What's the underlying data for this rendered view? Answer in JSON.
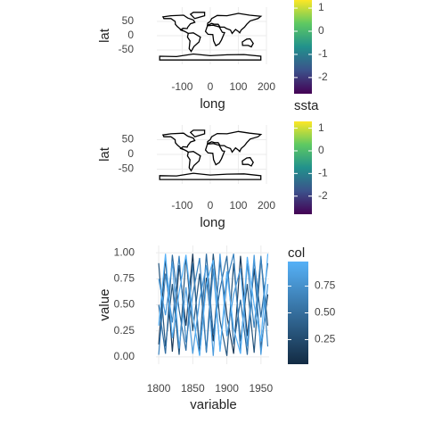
{
  "chart_data": [
    {
      "type": "map",
      "xlabel": "long",
      "ylabel": "lat",
      "xlim": [
        -190,
        200
      ],
      "ylim": [
        -100,
        100
      ],
      "xticks": [
        -100,
        0,
        100,
        200
      ],
      "yticks": [
        50,
        0,
        -50
      ],
      "colorbar": {
        "colormap": "viridis",
        "lim": [
          -2.7,
          1.35
        ],
        "ticks": [
          1,
          0,
          -1,
          -2
        ]
      }
    },
    {
      "type": "map",
      "xlabel": "long",
      "ylabel": "lat",
      "xlim": [
        -190,
        200
      ],
      "ylim": [
        -100,
        100
      ],
      "xticks": [
        -100,
        0,
        100,
        200
      ],
      "yticks": [
        50,
        0,
        -50
      ],
      "colorbar": {
        "title": "ssta",
        "colormap": "viridis",
        "lim": [
          -2.8,
          1.3
        ],
        "ticks": [
          1,
          0,
          -1,
          -2
        ]
      }
    },
    {
      "type": "line",
      "xlabel": "variable",
      "ylabel": "value",
      "xlim": [
        1796,
        1962
      ],
      "ylim": [
        -0.07,
        1.07
      ],
      "xticks": [
        1800,
        1850,
        1900,
        1950
      ],
      "yticks": [
        {
          "value": 0,
          "label": "0.00"
        },
        {
          "value": 0.25,
          "label": "0.25"
        },
        {
          "value": 0.5,
          "label": "0.50"
        },
        {
          "value": 0.75,
          "label": "0.75"
        },
        {
          "value": 1,
          "label": "1.00"
        }
      ],
      "x": [
        1800,
        1810,
        1820,
        1830,
        1840,
        1850,
        1860,
        1870,
        1880,
        1890,
        1900,
        1910,
        1920,
        1930,
        1940,
        1950,
        1960
      ],
      "series": [
        {
          "color": "#1b3a5a",
          "values": [
            0.12,
            0.95,
            0.05,
            0.88,
            0.3,
            0.99,
            0.02,
            0.76,
            0.15,
            0.92,
            0.4,
            0.03,
            0.97,
            0.2,
            0.85,
            0.08,
            0.6
          ]
        },
        {
          "color": "#24557e",
          "values": [
            0.9,
            0.1,
            0.7,
            0.02,
            0.96,
            0.25,
            0.8,
            0.05,
            0.99,
            0.35,
            0.01,
            0.9,
            0.15,
            0.7,
            0.04,
            0.95,
            0.3
          ]
        },
        {
          "color": "#2d6ba0",
          "values": [
            0.5,
            0.03,
            0.98,
            0.45,
            0.06,
            0.9,
            0.1,
            0.99,
            0.22,
            0.65,
            0.97,
            0.12,
            0.55,
            0.02,
            0.93,
            0.38,
            0.9
          ]
        },
        {
          "color": "#3a82be",
          "values": [
            0.02,
            0.8,
            0.33,
            0.97,
            0.14,
            0.6,
            0.95,
            0.04,
            0.85,
            0.07,
            0.73,
            0.99,
            0.05,
            0.9,
            0.28,
            0.97,
            0.1
          ]
        },
        {
          "color": "#4a9bdd",
          "values": [
            0.75,
            0.4,
            0.91,
            0.08,
            0.67,
            0.03,
            0.55,
            0.88,
            0.01,
            0.99,
            0.2,
            0.6,
            0.85,
            0.1,
            0.98,
            0.02,
            0.7
          ]
        },
        {
          "color": "#56b1f7",
          "values": [
            0.3,
            0.99,
            0.18,
            0.62,
            0.98,
            0.4,
            0.01,
            0.7,
            0.93,
            0.05,
            0.82,
            0.27,
            0.03,
            0.96,
            0.5,
            0.15,
            0.99
          ]
        }
      ],
      "colorbar": {
        "title": "col",
        "colors": [
          "#132b43",
          "#56b1f7"
        ],
        "lim": [
          0.02,
          0.98
        ],
        "ticks": [
          {
            "value": 0.25,
            "label": "0.25"
          },
          {
            "value": 0.5,
            "label": "0.50"
          },
          {
            "value": 0.75,
            "label": "0.75"
          }
        ]
      }
    }
  ]
}
